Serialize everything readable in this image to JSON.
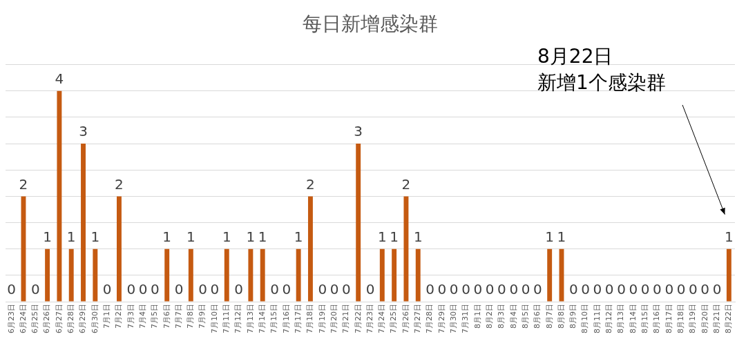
{
  "chart_data": {
    "type": "bar",
    "title": "每日新增感染群",
    "categories": [
      "6月23日",
      "6月24日",
      "6月25日",
      "6月26日",
      "6月27日",
      "6月28日",
      "6月29日",
      "6月30日",
      "7月1日",
      "7月2日",
      "7月3日",
      "7月4日",
      "7月5日",
      "7月6日",
      "7月7日",
      "7月8日",
      "7月9日",
      "7月10日",
      "7月11日",
      "7月12日",
      "7月13日",
      "7月14日",
      "7月15日",
      "7月16日",
      "7月17日",
      "7月18日",
      "7月19日",
      "7月20日",
      "7月21日",
      "7月22日",
      "7月23日",
      "7月24日",
      "7月25日",
      "7月26日",
      "7月27日",
      "7月28日",
      "7月29日",
      "7月30日",
      "7月31日",
      "8月1日",
      "8月2日",
      "8月3日",
      "8月4日",
      "8月5日",
      "8月6日",
      "8月7日",
      "8月8日",
      "8月9日",
      "8月10日",
      "8月11日",
      "8月12日",
      "8月13日",
      "8月14日",
      "8月15日",
      "8月16日",
      "8月17日",
      "8月18日",
      "8月19日",
      "8月20日",
      "8月21日",
      "8月22日"
    ],
    "values": [
      0,
      2,
      0,
      1,
      4,
      1,
      3,
      1,
      0,
      2,
      0,
      0,
      0,
      1,
      0,
      1,
      0,
      0,
      1,
      0,
      1,
      1,
      0,
      0,
      1,
      2,
      0,
      0,
      0,
      3,
      0,
      1,
      1,
      2,
      1,
      0,
      0,
      0,
      0,
      0,
      0,
      0,
      0,
      0,
      0,
      1,
      1,
      0,
      0,
      0,
      0,
      0,
      0,
      0,
      0,
      0,
      0,
      0,
      0,
      0,
      1
    ],
    "color": "#c55a11",
    "ylim": [
      0,
      4.5
    ],
    "yticks": [
      {
        "value": 0,
        "label": null
      },
      {
        "value": 0.5,
        "label": null
      },
      {
        "value": 1,
        "label": null
      },
      {
        "value": 1.5,
        "label": null
      },
      {
        "value": 2,
        "label": null
      },
      {
        "value": 2.5,
        "label": null
      },
      {
        "value": 3,
        "label": null
      },
      {
        "value": 3.5,
        "label": null
      },
      {
        "value": 4,
        "label": null
      },
      {
        "value": 4.5,
        "label": null
      }
    ],
    "tick_labels": "x",
    "grid": "y",
    "legend": false,
    "data_labels": true,
    "annotations": [
      "8月22日",
      "新增1个感染群"
    ]
  }
}
